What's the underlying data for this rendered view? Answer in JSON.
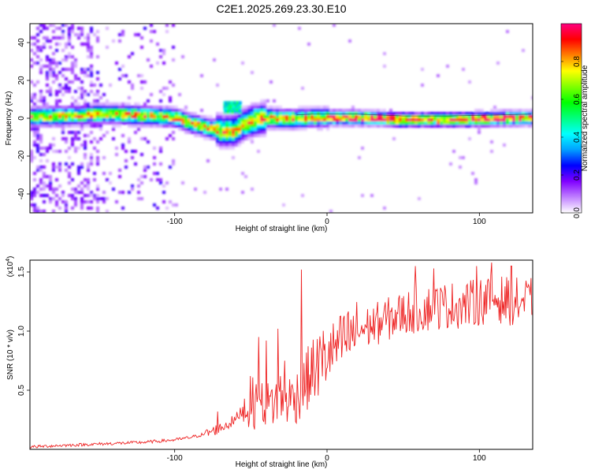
{
  "figure_title": "C2E1.2025.269.23.30.E10",
  "chart_data": [
    {
      "type": "heatmap",
      "title": "C2E1.2025.269.23.30.E10",
      "xlabel": "Height of straight line (km)",
      "ylabel": "Frequency (Hz)",
      "xlim": [
        -195,
        135
      ],
      "ylim": [
        -50,
        50
      ],
      "x_ticks": [
        -100,
        0,
        100
      ],
      "x_tick_labels": [
        "-100",
        "0",
        "100"
      ],
      "y_ticks": [
        -40,
        -20,
        0,
        20,
        40
      ],
      "y_tick_labels": [
        "-40",
        "-20",
        "0",
        "20",
        "40"
      ],
      "colorbar": {
        "label": "Normalized spectral amplitude",
        "range": [
          0,
          1
        ],
        "ticks": [
          0.0,
          0.2,
          0.4,
          0.6,
          0.8
        ],
        "tick_labels": [
          "0.0",
          "0.2",
          "0.4",
          "0.6",
          "0.8"
        ],
        "colors": [
          "#ffffff",
          "#c080ff",
          "#8000ff",
          "#0000ff",
          "#00a0ff",
          "#00ffff",
          "#00ff80",
          "#00ff00",
          "#80ff00",
          "#ffff00",
          "#ff8000",
          "#ff0000",
          "#ff0080"
        ]
      },
      "centerline": [
        {
          "x": -195,
          "y": 1.5
        },
        {
          "x": -170,
          "y": 2.0
        },
        {
          "x": -150,
          "y": 3.0
        },
        {
          "x": -130,
          "y": 2.5
        },
        {
          "x": -115,
          "y": 2.0
        },
        {
          "x": -100,
          "y": 1.0
        },
        {
          "x": -90,
          "y": -2.0
        },
        {
          "x": -80,
          "y": -4.0
        },
        {
          "x": -70,
          "y": -6.0
        },
        {
          "x": -62,
          "y": -6.0
        },
        {
          "x": -55,
          "y": -2.0
        },
        {
          "x": -48,
          "y": 0.0
        },
        {
          "x": -40,
          "y": 1.0
        },
        {
          "x": -30,
          "y": 0.5
        },
        {
          "x": -22,
          "y": 0.5
        },
        {
          "x": -10,
          "y": 1.0
        },
        {
          "x": 0,
          "y": 1.0
        },
        {
          "x": 20,
          "y": 1.0
        },
        {
          "x": 50,
          "y": 0.0
        },
        {
          "x": 80,
          "y": 0.0
        },
        {
          "x": 110,
          "y": 0.5
        },
        {
          "x": 135,
          "y": 1.0
        }
      ]
    },
    {
      "type": "line",
      "xlabel": "Height of straight line (km)",
      "ylabel": "SNR (10 * v/v)",
      "y_scale_label": "(x10",
      "y_scale_exponent": "4",
      "y_scale_suffix": ")",
      "xlim": [
        -195,
        135
      ],
      "ylim": [
        0,
        1.6
      ],
      "x_ticks": [
        -100,
        0,
        100
      ],
      "x_tick_labels": [
        "-100",
        "0",
        "100"
      ],
      "y_ticks": [
        0.5,
        1.0,
        1.5
      ],
      "y_tick_labels": [
        "0.5",
        "1.0",
        "1.5"
      ],
      "color": "#ee2222",
      "series": [
        {
          "name": "SNR",
          "x": [
            -195,
            -180,
            -160,
            -140,
            -120,
            -100,
            -90,
            -80,
            -70,
            -60,
            -55,
            -50,
            -45,
            -40,
            -35,
            -30,
            -25,
            -20,
            -15,
            -10,
            -5,
            0,
            5,
            10,
            15,
            20,
            30,
            40,
            50,
            60,
            70,
            80,
            90,
            100,
            110,
            120,
            130,
            135
          ],
          "y": [
            0.02,
            0.03,
            0.04,
            0.05,
            0.06,
            0.08,
            0.1,
            0.13,
            0.18,
            0.25,
            0.35,
            0.4,
            0.38,
            0.35,
            0.4,
            0.45,
            0.42,
            0.45,
            0.55,
            0.65,
            0.72,
            0.8,
            0.85,
            0.9,
            0.95,
            1.0,
            1.05,
            1.1,
            1.15,
            1.18,
            1.2,
            1.22,
            1.22,
            1.25,
            1.28,
            1.25,
            1.25,
            1.25
          ]
        }
      ],
      "peak_spikes": [
        {
          "x": -72,
          "y": 0.32
        },
        {
          "x": -45,
          "y": 0.95
        },
        {
          "x": -40,
          "y": 0.92
        },
        {
          "x": -32,
          "y": 1.02
        },
        {
          "x": -28,
          "y": 0.75
        },
        {
          "x": -17,
          "y": 1.52
        },
        {
          "x": -10,
          "y": 0.86
        },
        {
          "x": 10,
          "y": 0.9
        },
        {
          "x": 58,
          "y": 1.55
        },
        {
          "x": 70,
          "y": 1.53
        },
        {
          "x": 98,
          "y": 1.55
        },
        {
          "x": 108,
          "y": 1.58
        },
        {
          "x": 121,
          "y": 1.55
        }
      ]
    }
  ]
}
